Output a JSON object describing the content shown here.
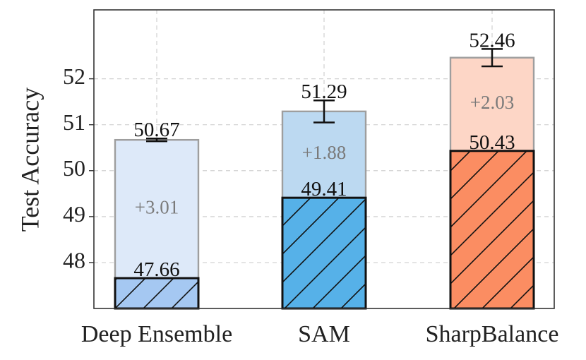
{
  "chart_data": {
    "type": "bar",
    "ylabel": "Test Accuracy",
    "ylim": [
      47.0,
      53.5
    ],
    "yticks": [
      48,
      49,
      50,
      51,
      52
    ],
    "grid": true,
    "categories": [
      "Deep Ensemble",
      "SAM",
      "SharpBalance"
    ],
    "series": [
      {
        "values": [
          47.66,
          49.41,
          50.43
        ]
      },
      {
        "values": [
          50.67,
          51.29,
          52.46
        ]
      }
    ],
    "gain_labels": [
      "+3.01",
      "+1.88",
      "+2.03"
    ],
    "bottom_labels": [
      "47.66",
      "49.41",
      "50.43"
    ],
    "top_labels": [
      "50.67",
      "51.29",
      "52.46"
    ],
    "error_bars": [
      0.03,
      0.24,
      0.19
    ],
    "colors": {
      "base": [
        "#a5c8f2",
        "#56b1e8",
        "#fb8d62"
      ],
      "top": [
        "#dde9f9",
        "#bcd9f1",
        "#fdd6c6"
      ]
    }
  }
}
